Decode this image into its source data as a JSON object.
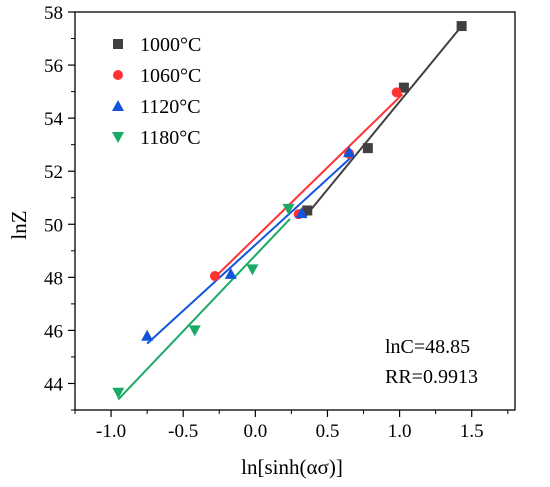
{
  "chart_data": {
    "type": "scatter",
    "xlabel": "ln[sinh(ασ)]",
    "ylabel": "lnZ",
    "xlim": [
      -1.25,
      1.8
    ],
    "ylim": [
      43.0,
      58.0
    ],
    "xticks": [
      -1.0,
      -0.5,
      0.0,
      0.5,
      1.0,
      1.5
    ],
    "xtick_labels": [
      "-1.0",
      "-0.5",
      "0.0",
      "0.5",
      "1.0",
      "1.5"
    ],
    "yticks": [
      44,
      46,
      48,
      50,
      52,
      54,
      56,
      58
    ],
    "ytick_labels": [
      "44",
      "46",
      "48",
      "50",
      "52",
      "54",
      "56",
      "58"
    ],
    "grid": false,
    "legend_position": "top-left",
    "series": [
      {
        "name": "1000°C",
        "marker": "square",
        "color": "#404040",
        "x": [
          0.36,
          0.78,
          1.03,
          1.43
        ],
        "y": [
          50.52,
          52.87,
          55.15,
          57.47
        ],
        "fit": {
          "x": [
            0.34,
            1.45
          ],
          "y": [
            50.25,
            57.6
          ]
        }
      },
      {
        "name": "1060°C",
        "marker": "circle",
        "color": "#ff3333",
        "x": [
          -0.28,
          0.3,
          0.65,
          0.98
        ],
        "y": [
          48.05,
          50.38,
          52.66,
          54.97
        ],
        "fit": {
          "x": [
            -0.3,
            1.02
          ],
          "y": [
            47.9,
            54.9
          ]
        }
      },
      {
        "name": "1120°C",
        "marker": "triangle-up",
        "color": "#1155dd",
        "x": [
          -0.75,
          -0.17,
          0.32,
          0.65
        ],
        "y": [
          45.8,
          48.13,
          50.42,
          52.72
        ],
        "fit": {
          "x": [
            -0.75,
            0.68
          ],
          "y": [
            45.5,
            52.6
          ]
        }
      },
      {
        "name": "1180°C",
        "marker": "triangle-down",
        "color": "#1aaa66",
        "x": [
          -0.95,
          -0.42,
          -0.02,
          0.23
        ],
        "y": [
          43.65,
          46.0,
          48.3,
          50.58
        ],
        "fit": {
          "x": [
            -0.95,
            0.24
          ],
          "y": [
            43.4,
            50.2
          ]
        }
      }
    ],
    "annotations": [
      "lnC=48.85",
      "RR=0.9913"
    ]
  }
}
